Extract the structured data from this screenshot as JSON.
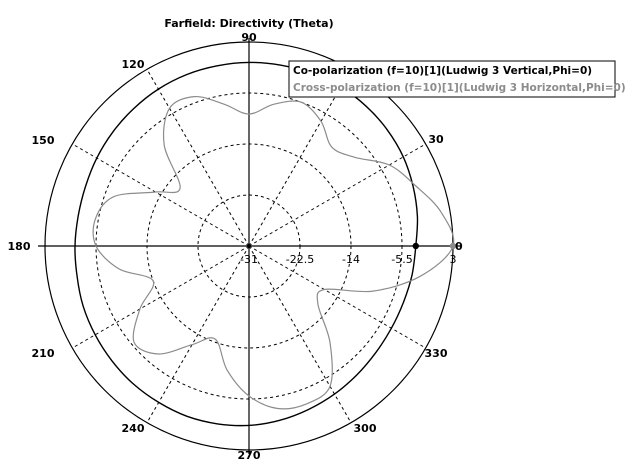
{
  "chart_data": {
    "type": "polar-line",
    "title": "Farfield: Directivity (Theta)",
    "angle_ticks": [
      "0",
      "30",
      "90",
      "120",
      "150",
      "180",
      "210",
      "240",
      "270",
      "300",
      "330"
    ],
    "radial_ticks": [
      "-31",
      "-22.5",
      "-14",
      "-5.5",
      "3"
    ],
    "rlim": [
      -31,
      3
    ],
    "grid": true,
    "legend_position": "top-right",
    "series": [
      {
        "name": "Co-polarization (f=10)[1](Ludwig 3 Vertical,Phi=0)",
        "color": "#000000",
        "angles": [
          0,
          10,
          20,
          30,
          40,
          50,
          60,
          70,
          80,
          90,
          100,
          110,
          120,
          130,
          140,
          150,
          160,
          170,
          180,
          190,
          200,
          210,
          220,
          230,
          240,
          250,
          260,
          270,
          280,
          290,
          300,
          310,
          320,
          330,
          340,
          350
        ],
        "values": [
          -3.2,
          -2.5,
          -1.9,
          -1.3,
          -0.9,
          -0.6,
          -0.4,
          -0.4,
          -0.4,
          -0.4,
          -0.5,
          -0.6,
          -0.8,
          -1.1,
          -1.4,
          -1.7,
          -2.0,
          -2.1,
          -2.0,
          -1.9,
          -1.6,
          -1.4,
          -1.2,
          -1.0,
          -0.9,
          -0.8,
          -0.9,
          -1.1,
          -1.5,
          -2.0,
          -2.5,
          -3.0,
          -3.4,
          -3.6,
          -3.6,
          -3.4
        ]
      },
      {
        "name": "Cross-polarization (f=10)[1](Ludwig 3 Horizontal,Phi=0)",
        "color": "#8c8c8c",
        "angles": [
          0,
          10,
          20,
          30,
          40,
          50,
          60,
          70,
          80,
          90,
          100,
          110,
          120,
          130,
          140,
          150,
          160,
          170,
          180,
          190,
          200,
          210,
          220,
          230,
          240,
          250,
          260,
          270,
          280,
          290,
          300,
          310,
          320,
          330,
          340,
          350
        ],
        "values": [
          3.0,
          1.5,
          -1.5,
          -4.0,
          -8.0,
          -9.5,
          -7.0,
          -5.5,
          -7.0,
          -9.0,
          -7.0,
          -4.5,
          -4.5,
          -9.0,
          -16.0,
          -13.0,
          -7.0,
          -5.0,
          -5.5,
          -9.0,
          -14.0,
          -10.0,
          -6.0,
          -7.5,
          -12.0,
          -14.5,
          -10.0,
          -6.0,
          -3.5,
          -3.0,
          -4.0,
          -10.0,
          -16.0,
          -16.5,
          -9.0,
          -2.0
        ]
      }
    ],
    "markers": [
      {
        "series": 0,
        "angle": 0,
        "value": -3.2,
        "color": "#000000"
      },
      {
        "series": 1,
        "angle": 0,
        "value": 3.0,
        "color": "#8c8c8c"
      }
    ]
  }
}
